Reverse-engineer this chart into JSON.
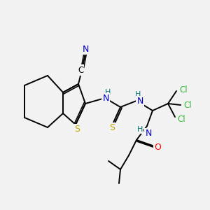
{
  "background_color": "#f2f2f2",
  "atoms": {
    "C": "#000000",
    "N": "#0000cc",
    "S_thio": "#bbaa00",
    "S_tu": "#bbaa00",
    "Cl": "#33bb33",
    "O": "#ff0000",
    "H": "#007777",
    "CN_N": "#0000cc"
  },
  "bond_color": "#000000",
  "figsize": [
    3.0,
    3.0
  ],
  "dpi": 100
}
